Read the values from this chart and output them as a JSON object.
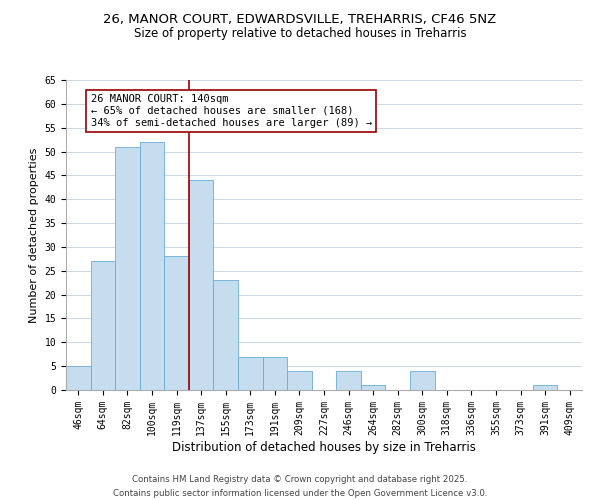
{
  "title": "26, MANOR COURT, EDWARDSVILLE, TREHARRIS, CF46 5NZ",
  "subtitle": "Size of property relative to detached houses in Treharris",
  "xlabel": "Distribution of detached houses by size in Treharris",
  "ylabel": "Number of detached properties",
  "bar_color": "#c6ddef",
  "bar_edge_color": "#6aadd5",
  "categories": [
    "46sqm",
    "64sqm",
    "82sqm",
    "100sqm",
    "119sqm",
    "137sqm",
    "155sqm",
    "173sqm",
    "191sqm",
    "209sqm",
    "227sqm",
    "246sqm",
    "264sqm",
    "282sqm",
    "300sqm",
    "318sqm",
    "336sqm",
    "355sqm",
    "373sqm",
    "391sqm",
    "409sqm"
  ],
  "values": [
    5,
    27,
    51,
    52,
    28,
    44,
    23,
    7,
    7,
    4,
    0,
    4,
    1,
    0,
    4,
    0,
    0,
    0,
    0,
    1,
    0
  ],
  "ylim": [
    0,
    65
  ],
  "yticks": [
    0,
    5,
    10,
    15,
    20,
    25,
    30,
    35,
    40,
    45,
    50,
    55,
    60,
    65
  ],
  "vline_index": 5,
  "vline_color": "#990000",
  "annotation_title": "26 MANOR COURT: 140sqm",
  "annotation_line1": "← 65% of detached houses are smaller (168)",
  "annotation_line2": "34% of semi-detached houses are larger (89) →",
  "annotation_box_color": "#ffffff",
  "annotation_box_edge": "#990000",
  "footer1": "Contains HM Land Registry data © Crown copyright and database right 2025.",
  "footer2": "Contains public sector information licensed under the Open Government Licence v3.0.",
  "background_color": "#ffffff",
  "grid_color": "#c8d8e8",
  "title_fontsize": 9.5,
  "subtitle_fontsize": 8.5,
  "xlabel_fontsize": 8.5,
  "ylabel_fontsize": 8,
  "tick_fontsize": 7,
  "annot_fontsize": 7.5,
  "footer_fontsize": 6.2
}
